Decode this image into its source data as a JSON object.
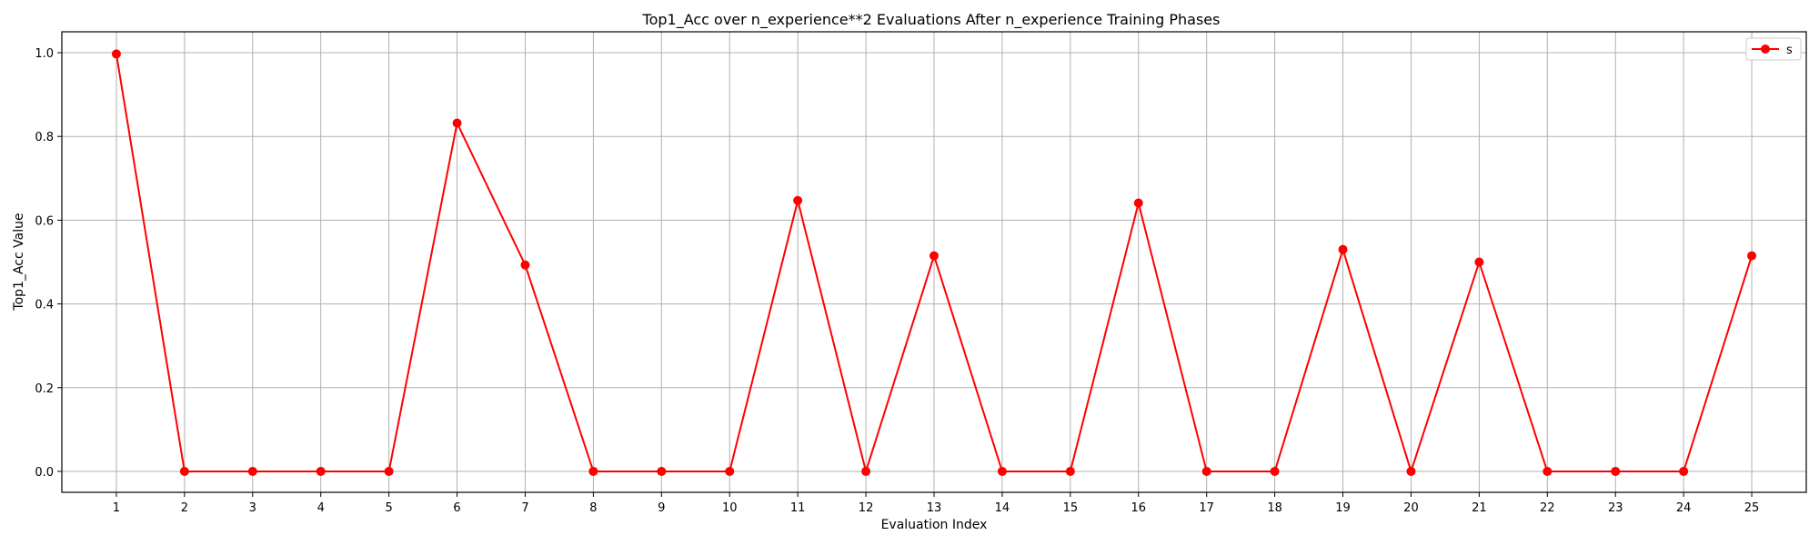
{
  "chart_data": {
    "type": "line",
    "title": "Top1_Acc over n_experience**2 Evaluations After n_experience Training Phases",
    "xlabel": "Evaluation Index",
    "ylabel": "Top1_Acc Value",
    "x": [
      1,
      2,
      3,
      4,
      5,
      6,
      7,
      8,
      9,
      10,
      11,
      12,
      13,
      14,
      15,
      16,
      17,
      18,
      19,
      20,
      21,
      22,
      23,
      24,
      25
    ],
    "xlim": [
      0.2,
      25.8
    ],
    "ylim": [
      -0.05,
      1.05
    ],
    "yticks": [
      0.0,
      0.2,
      0.4,
      0.6,
      0.8,
      1.0
    ],
    "ytick_labels": [
      "0.0",
      "0.2",
      "0.4",
      "0.6",
      "0.8",
      "1.0"
    ],
    "grid": true,
    "legend_position": "top-right",
    "series": [
      {
        "name": "s",
        "color": "#ff0000",
        "marker": "circle",
        "values": [
          0.997,
          0.0,
          0.0,
          0.0,
          0.0,
          0.832,
          0.493,
          0.0,
          0.0,
          0.0,
          0.647,
          0.0,
          0.515,
          0.0,
          0.0,
          0.641,
          0.0,
          0.0,
          0.53,
          0.0,
          0.5,
          0.0,
          0.0,
          0.0,
          0.515
        ]
      }
    ]
  }
}
